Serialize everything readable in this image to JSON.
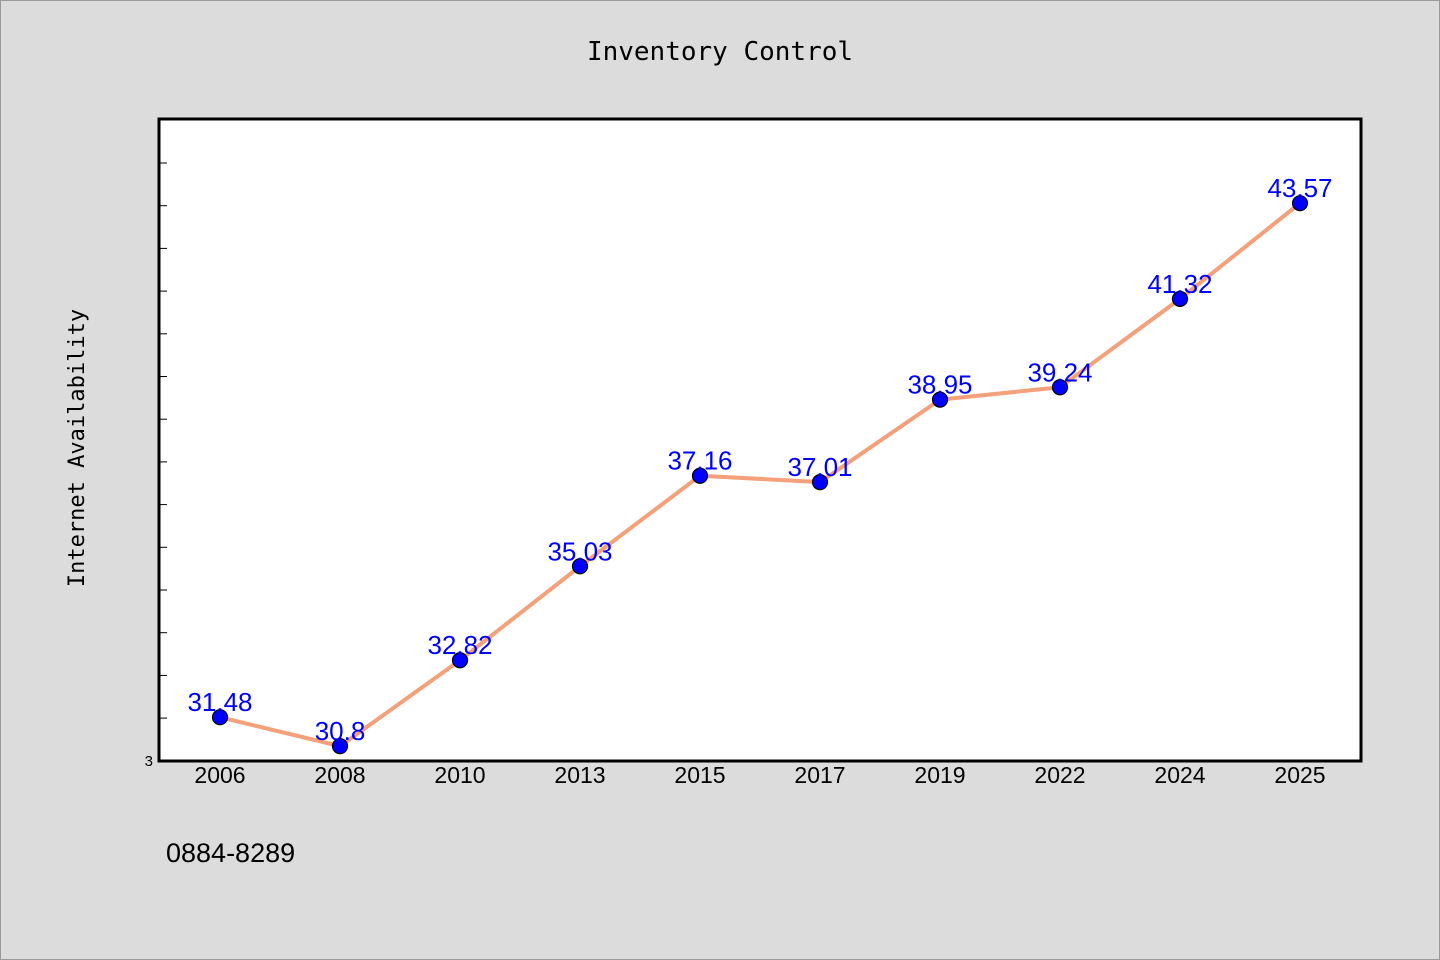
{
  "chart_data": {
    "type": "line",
    "title": "Inventory Control",
    "xlabel": "",
    "ylabel": "Internet Availability",
    "categories": [
      "2006",
      "2008",
      "2010",
      "2013",
      "2015",
      "2017",
      "2019",
      "2022",
      "2024",
      "2025"
    ],
    "series": [
      {
        "values": [
          31.48,
          30.8,
          32.82,
          35.03,
          37.16,
          37.01,
          38.95,
          39.24,
          41.32,
          43.57
        ],
        "line_color": "#f4a07a",
        "marker_color": "#0000ff"
      }
    ],
    "data_labels": [
      "31.48",
      "30.8",
      "32.82",
      "35.03",
      "37.16",
      "37.01",
      "38.95",
      "39.24",
      "41.32",
      "43.57"
    ],
    "ylim": [
      30.45,
      45.55
    ],
    "y_tick_label": "3",
    "grid": false,
    "legend": "none"
  },
  "footer": {
    "code": "0884-8289"
  }
}
